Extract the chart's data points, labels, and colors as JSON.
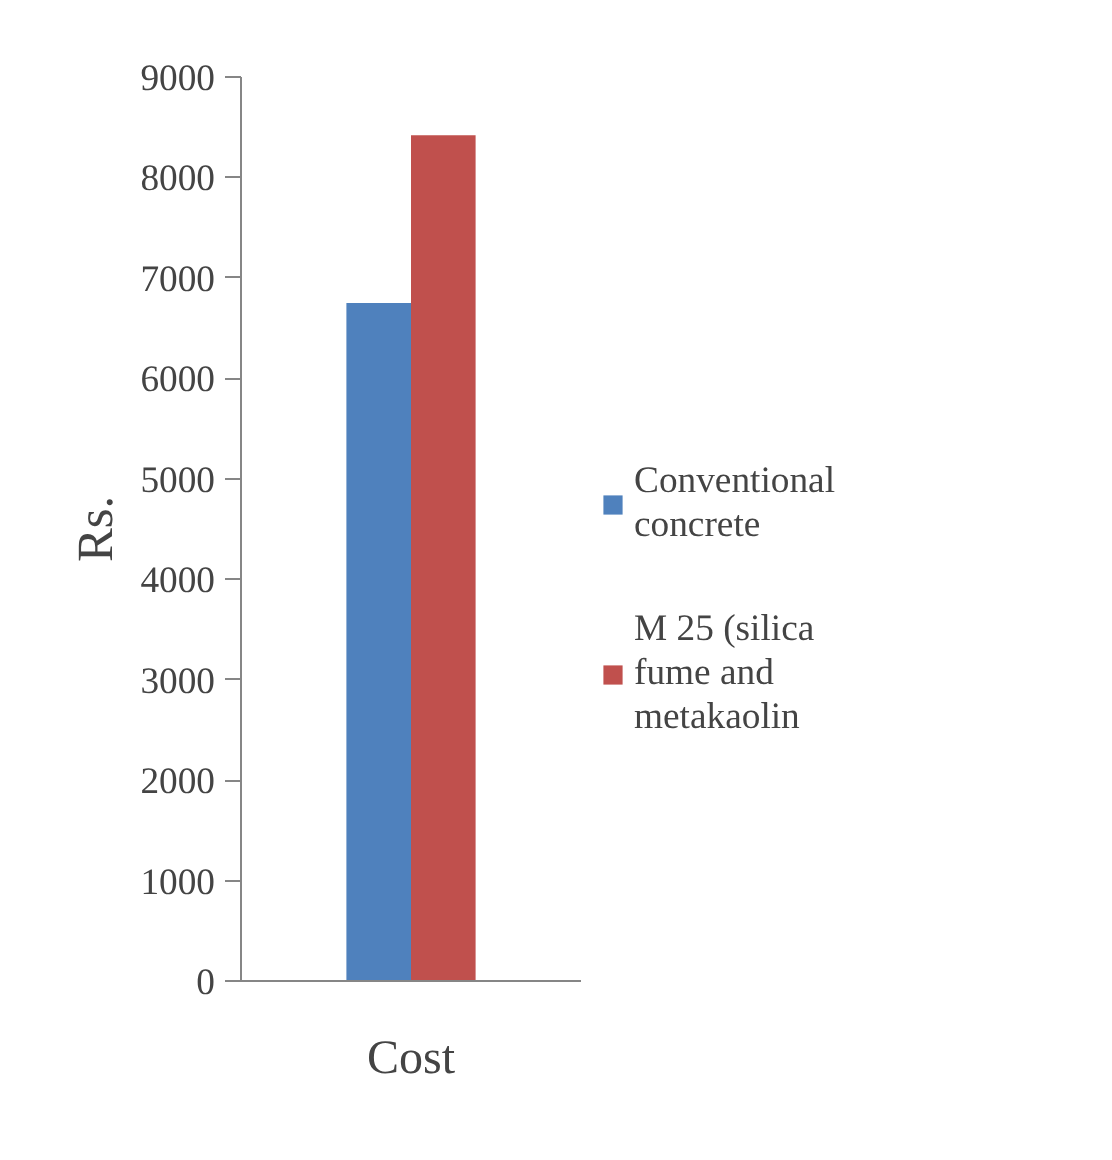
{
  "chart_data": {
    "type": "bar",
    "ylabel": "Rs.",
    "categories": [
      "Cost"
    ],
    "series": [
      {
        "name": "Conventional concrete",
        "color": "#4f81bd",
        "values": [
          6750
        ]
      },
      {
        "name": "M 25 (silica fume and metakaolin",
        "color": "#c0504d",
        "values": [
          8420
        ]
      }
    ],
    "ylim": [
      0,
      9000
    ],
    "yticks": [
      0,
      1000,
      2000,
      3000,
      4000,
      5000,
      6000,
      7000,
      8000,
      9000
    ],
    "grid": false,
    "legend": "right"
  }
}
